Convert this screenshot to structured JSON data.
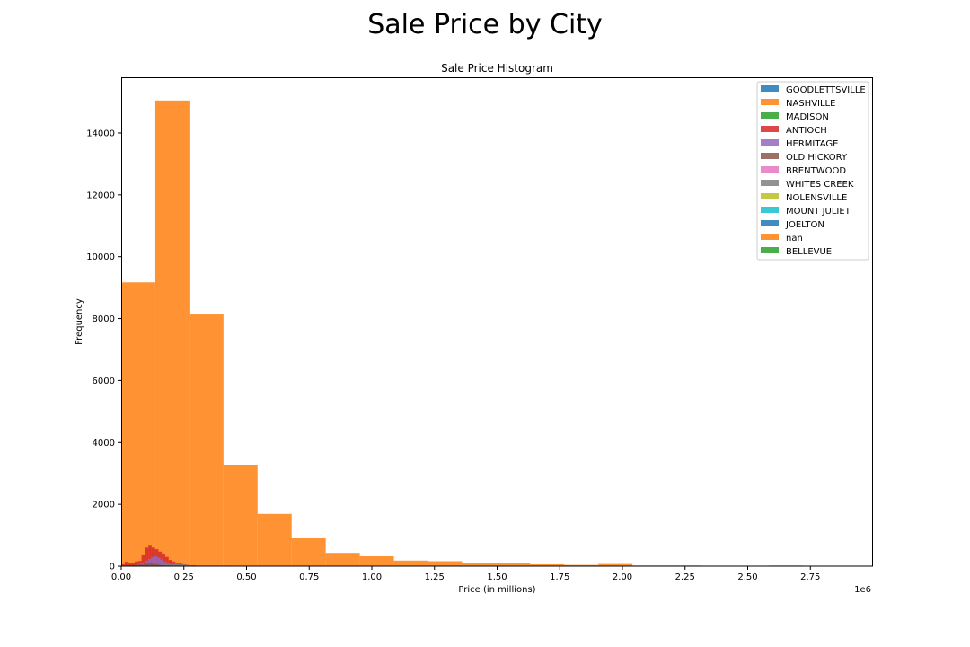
{
  "figure": {
    "title": "Sale Price by City"
  },
  "chart_data": {
    "type": "bar",
    "title": "Sale Price Histogram",
    "xlabel": "Price (in millions)",
    "ylabel": "Frequency",
    "x_offset_label": "1e6",
    "xlim": [
      0,
      3000000
    ],
    "ylim": [
      0,
      15800
    ],
    "xticks": [
      0,
      250000,
      500000,
      750000,
      1000000,
      1250000,
      1500000,
      1750000,
      2000000,
      2250000,
      2500000,
      2750000
    ],
    "xtick_labels": [
      "0.00",
      "0.25",
      "0.50",
      "0.75",
      "1.00",
      "1.25",
      "1.50",
      "1.75",
      "2.00",
      "2.25",
      "2.50",
      "2.75"
    ],
    "yticks": [
      0,
      2000,
      4000,
      6000,
      8000,
      10000,
      12000,
      14000
    ],
    "ytick_labels": [
      "0",
      "2000",
      "4000",
      "6000",
      "8000",
      "10000",
      "12000",
      "14000"
    ],
    "grid": false,
    "legend_position": "top-right",
    "series": [
      {
        "name": "GOODLETTSVILLE",
        "color": "#1f77b4",
        "bin_start": 0,
        "bin_width": 25000,
        "values": [
          5,
          15,
          25,
          30,
          45,
          40,
          30,
          20,
          10,
          5,
          3,
          2
        ]
      },
      {
        "name": "NASHVILLE",
        "color": "#ff7f0e",
        "bin_start": 0,
        "bin_width": 136000,
        "values": [
          9170,
          15050,
          8160,
          3270,
          1690,
          900,
          430,
          320,
          180,
          160,
          90,
          110,
          60,
          40,
          70,
          20,
          20,
          15,
          10,
          20,
          5
        ]
      },
      {
        "name": "MADISON",
        "color": "#2ca02c",
        "bin_start": 0,
        "bin_width": 20000,
        "values": [
          10,
          25,
          40,
          70,
          95,
          110,
          90,
          60,
          35,
          15,
          5
        ]
      },
      {
        "name": "ANTIOCH",
        "color": "#d62728",
        "bin_start": 0,
        "bin_width": 13500,
        "values": [
          60,
          140,
          110,
          90,
          150,
          170,
          350,
          600,
          660,
          600,
          550,
          470,
          390,
          300,
          200,
          150,
          110,
          80,
          60,
          40,
          20,
          30,
          15,
          10,
          8
        ]
      },
      {
        "name": "HERMITAGE",
        "color": "#9467bd",
        "bin_start": 60000,
        "bin_width": 12000,
        "values": [
          40,
          80,
          120,
          180,
          240,
          290,
          320,
          280,
          220,
          150,
          100,
          60,
          30,
          15
        ]
      },
      {
        "name": "OLD HICKORY",
        "color": "#8c564b",
        "bin_start": 50000,
        "bin_width": 20000,
        "values": [
          20,
          50,
          80,
          90,
          70,
          40,
          20,
          10
        ]
      },
      {
        "name": "BRENTWOOD",
        "color": "#e377c2",
        "bin_start": 200000,
        "bin_width": 50000,
        "values": [
          10,
          20,
          25,
          20,
          15,
          8,
          4
        ]
      },
      {
        "name": "WHITES CREEK",
        "color": "#7f7f7f",
        "bin_start": 50000,
        "bin_width": 30000,
        "values": [
          10,
          20,
          30,
          40,
          60,
          80,
          60,
          30,
          15
        ]
      },
      {
        "name": "NOLENSVILLE",
        "color": "#bcbd22",
        "bin_start": 200000,
        "bin_width": 40000,
        "values": [
          10,
          20,
          15,
          8
        ]
      },
      {
        "name": "MOUNT JULIET",
        "color": "#17becf",
        "bin_start": 150000,
        "bin_width": 30000,
        "values": [
          10,
          15,
          20,
          12,
          6
        ]
      },
      {
        "name": "JOELTON",
        "color": "#1f77b4",
        "bin_start": 80000,
        "bin_width": 30000,
        "values": [
          10,
          20,
          25,
          15,
          5
        ]
      },
      {
        "name": "nan",
        "color": "#ff7f0e",
        "bin_start": 100000,
        "bin_width": 30000,
        "values": [
          5,
          10,
          8,
          4
        ]
      },
      {
        "name": "BELLEVUE",
        "color": "#2ca02c",
        "bin_start": 150000,
        "bin_width": 30000,
        "values": [
          8,
          12,
          10,
          5
        ]
      }
    ]
  }
}
